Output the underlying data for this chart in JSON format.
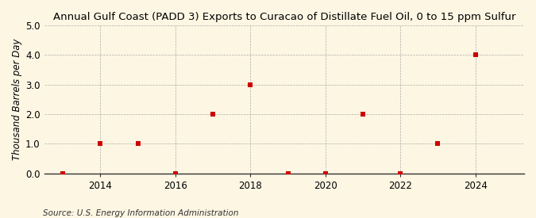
{
  "title": "Annual Gulf Coast (PADD 3) Exports to Curacao of Distillate Fuel Oil, 0 to 15 ppm Sulfur",
  "ylabel": "Thousand Barrels per Day",
  "source": "Source: U.S. Energy Information Administration",
  "years": [
    2013,
    2014,
    2015,
    2016,
    2017,
    2018,
    2019,
    2020,
    2021,
    2022,
    2023,
    2024
  ],
  "values": [
    0.0,
    1.0,
    1.0,
    0.0,
    2.0,
    3.0,
    0.0,
    0.0,
    2.0,
    0.0,
    1.0,
    4.0
  ],
  "ylim": [
    0.0,
    5.0
  ],
  "xlim": [
    2012.5,
    2025.3
  ],
  "yticks": [
    0.0,
    1.0,
    2.0,
    3.0,
    4.0,
    5.0
  ],
  "xticks": [
    2014,
    2016,
    2018,
    2020,
    2022,
    2024
  ],
  "marker_color": "#cc0000",
  "marker_size": 18,
  "background_color": "#fdf6e3",
  "grid_color": "#999999",
  "title_fontsize": 9.5,
  "label_fontsize": 8.5,
  "tick_fontsize": 8.5,
  "source_fontsize": 7.5
}
